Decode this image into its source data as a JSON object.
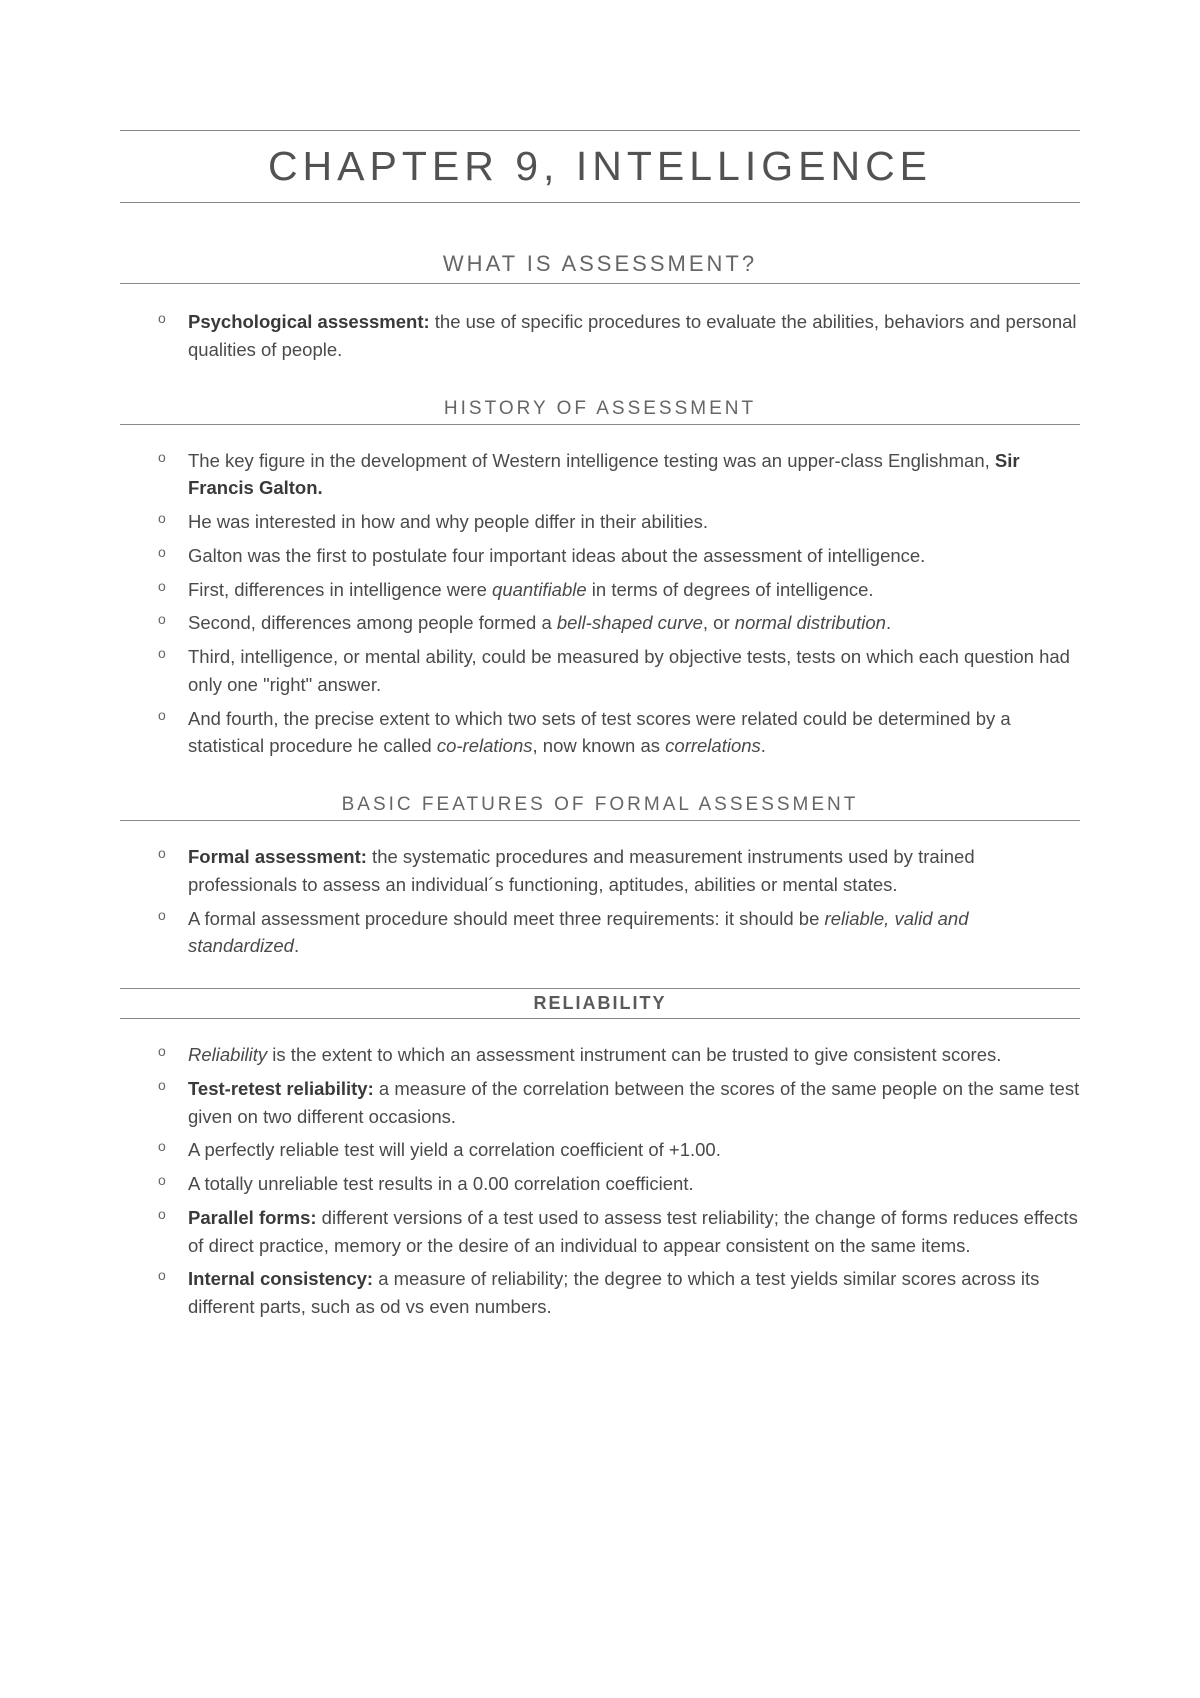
{
  "chapter_title": "CHAPTER 9, INTELLIGENCE",
  "sections": {
    "what_is_assessment": {
      "title": "WHAT IS ASSESSMENT?",
      "items": {
        "psych_assessment_label": "Psychological assessment:",
        "psych_assessment_text": " the use of specific procedures to evaluate the abilities, behaviors and personal qualities of people."
      }
    },
    "history": {
      "title": "HISTORY OF ASSESSMENT",
      "items": {
        "key_figure_pre": "The key figure in the development of Western intelligence testing was an upper-class Englishman, ",
        "key_figure_name": "Sir Francis Galton.",
        "interested": "He was interested in how and why people differ in their abilities.",
        "postulate": "Galton was the first to postulate four important ideas about the assessment of intelligence.",
        "first_pre": "First, differences in intelligence were ",
        "first_italic": "quantifiable",
        "first_post": " in terms of degrees of intelligence.",
        "second_pre": "Second, differences among people formed a ",
        "second_italic1": "bell-shaped curve",
        "second_mid": ", or ",
        "second_italic2": "normal distribution",
        "second_post": ".",
        "third": "Third, intelligence, or mental ability, could be measured by objective tests, tests on which each question had only one \"right\" answer.",
        "fourth_pre": "And fourth, the precise extent to which two sets of test scores were related could be determined by a statistical procedure he called ",
        "fourth_italic1": "co-relations",
        "fourth_mid": ", now known as ",
        "fourth_italic2": "correlations",
        "fourth_post": "."
      }
    },
    "basic_features": {
      "title": "BASIC FEATURES OF FORMAL ASSESSMENT",
      "items": {
        "formal_label": "Formal assessment:",
        "formal_text": " the systematic procedures and measurement instruments used by trained professionals to assess an individual´s functioning, aptitudes, abilities or mental states.",
        "requirements_pre": "A formal assessment procedure should meet three requirements: it should be ",
        "requirements_italic": "reliable, valid and standardized",
        "requirements_post": "."
      }
    },
    "reliability": {
      "title": "RELIABILITY",
      "items": {
        "def_italic": "Reliability",
        "def_text": " is the extent to which an assessment instrument can be trusted to give consistent scores.",
        "test_retest_label": "Test-retest reliability:",
        "test_retest_text": " a measure of the correlation between the scores of the same people on the same test given on two different occasions.",
        "perfect": "A perfectly reliable test will yield a correlation coefficient of +1.00.",
        "unreliable": "A totally unreliable test results in a 0.00 correlation coefficient.",
        "parallel_label": "Parallel forms:",
        "parallel_text": " different versions of a test used to assess test reliability; the change of forms reduces effects of direct practice, memory or the desire of an individual to appear consistent on the same items.",
        "internal_label": "Internal consistency:",
        "internal_text": " a measure of reliability; the degree to which a test yields similar scores across its different parts, such as od vs even numbers."
      }
    }
  }
}
